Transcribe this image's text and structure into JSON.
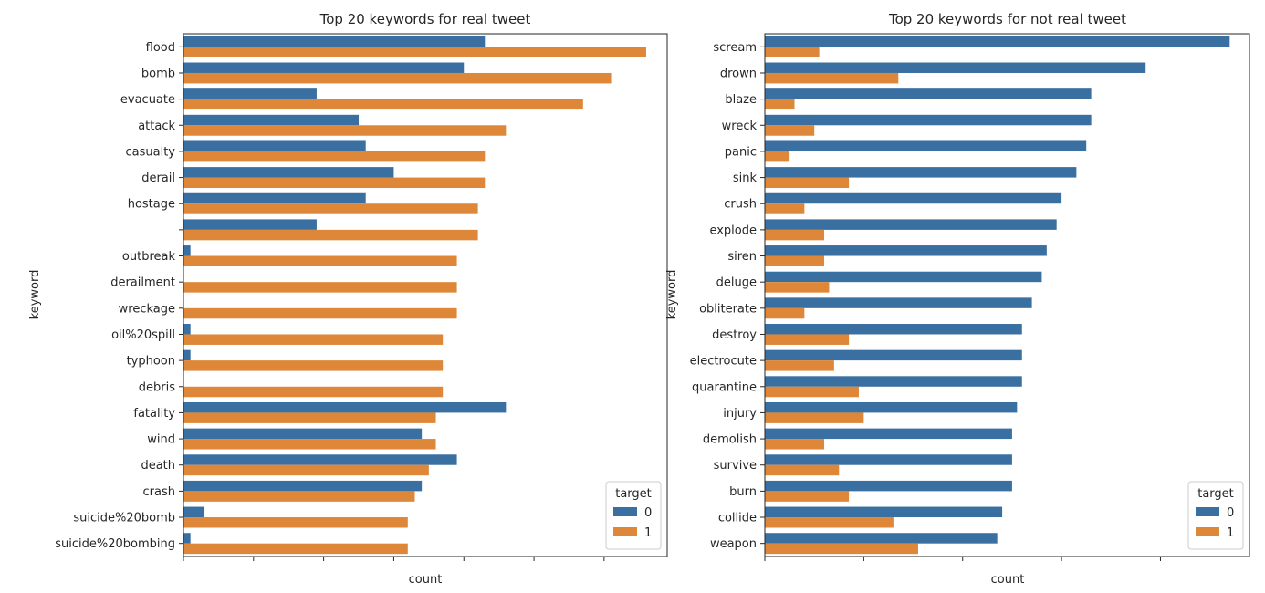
{
  "colors": {
    "target_0": "#3a6fa1",
    "target_1": "#de8738"
  },
  "chart_data": [
    {
      "type": "bar",
      "orientation": "horizontal",
      "title": "Top 20 keywords for real tweet",
      "xlabel": "count",
      "ylabel": "keyword",
      "categories": [
        "flood",
        "bomb",
        "evacuate",
        "attack",
        "casualty",
        "derail",
        "hostage",
        "",
        "outbreak",
        "derailment",
        "wreckage",
        "oil%20spill",
        "typhoon",
        "debris",
        "fatality",
        "wind",
        "death",
        "crash",
        "suicide%20bomb",
        "suicide%20bombing"
      ],
      "series": [
        {
          "name": "0",
          "values": [
            43,
            40,
            19,
            25,
            26,
            30,
            26,
            19,
            1,
            0,
            0,
            1,
            1,
            0,
            46,
            34,
            39,
            34,
            3,
            1
          ]
        },
        {
          "name": "1",
          "values": [
            66,
            61,
            57,
            46,
            43,
            43,
            42,
            42,
            39,
            39,
            39,
            37,
            37,
            37,
            36,
            36,
            35,
            33,
            32,
            32
          ]
        }
      ],
      "xlim": [
        0,
        69
      ],
      "xtick_interval": 10,
      "legend": {
        "title": "target",
        "position": "lower right"
      },
      "grid": false
    },
    {
      "type": "bar",
      "orientation": "horizontal",
      "title": "Top 20 keywords for not real tweet",
      "xlabel": "count",
      "ylabel": "keyword",
      "categories": [
        "scream",
        "drown",
        "blaze",
        "wreck",
        "panic",
        "sink",
        "crush",
        "explode",
        "siren",
        "deluge",
        "obliterate",
        "destroy",
        "electrocute",
        "quarantine",
        "injury",
        "demolish",
        "survive",
        "burn",
        "collide",
        "weapon"
      ],
      "series": [
        {
          "name": "0",
          "values": [
            47,
            38.5,
            33,
            33,
            32.5,
            31.5,
            30,
            29.5,
            28.5,
            28,
            27,
            26,
            26,
            26,
            25.5,
            25,
            25,
            25,
            24,
            23.5
          ]
        },
        {
          "name": "1",
          "values": [
            5.5,
            13.5,
            3,
            5,
            2.5,
            8.5,
            4,
            6,
            6,
            6.5,
            4,
            8.5,
            7,
            9.5,
            10,
            6,
            7.5,
            8.5,
            13,
            15.5
          ]
        }
      ],
      "xlim": [
        0,
        49
      ],
      "xtick_interval": 10,
      "legend": {
        "title": "target",
        "position": "lower right"
      },
      "grid": false
    }
  ]
}
